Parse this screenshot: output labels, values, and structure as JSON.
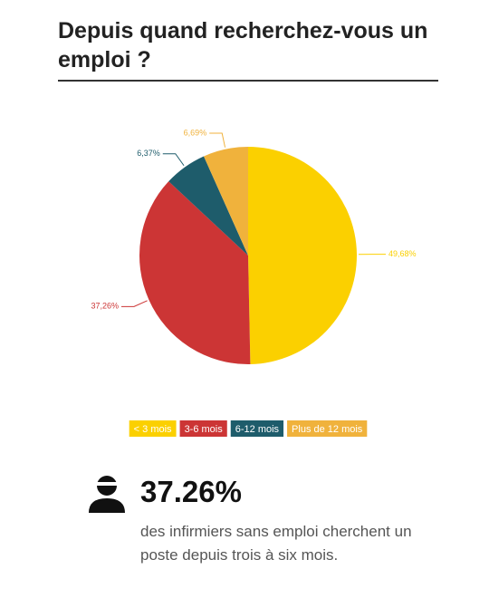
{
  "chart_data": {
    "type": "pie",
    "title": "Depuis quand recherchez-vous un emploi ?",
    "categories": [
      "< 3 mois",
      "3-6 mois",
      "6-12 mois",
      "Plus de 12 mois"
    ],
    "values": [
      49.68,
      37.26,
      6.37,
      6.69
    ],
    "value_labels": [
      "49,68%",
      "37,26%",
      "6,37%",
      "6,69%"
    ],
    "colors": [
      "#fbd000",
      "#cc3535",
      "#1e5c6b",
      "#f0b23c"
    ],
    "legend": "bottom"
  },
  "callout": {
    "figure": "37.26%",
    "caption": "des infirmiers sans emploi cherchent un poste depuis trois à six mois."
  }
}
